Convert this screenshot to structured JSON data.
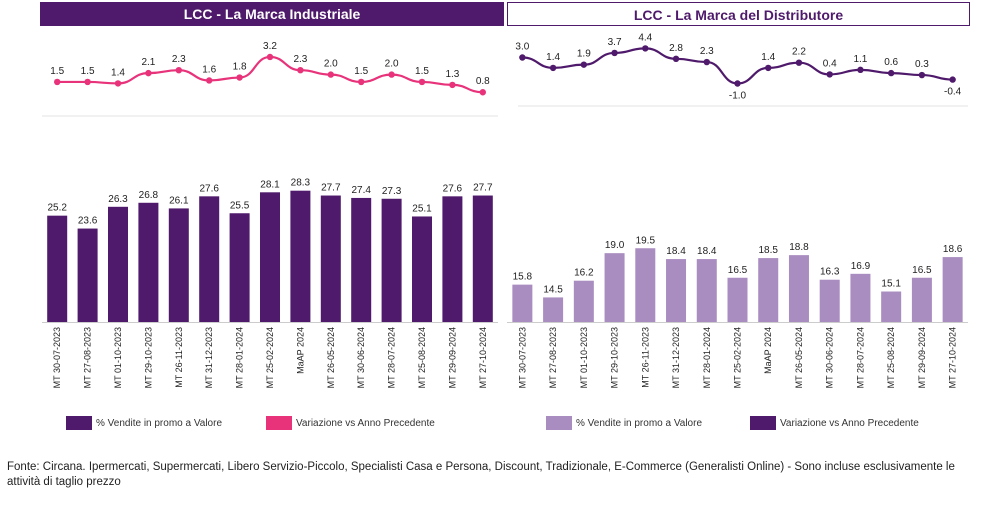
{
  "titles": {
    "left": "LCC - La Marca Industriale",
    "right": "LCC - La Marca del Distributore"
  },
  "categories": [
    "MT 30-07-2023",
    "MT 27-08-2023",
    "MT 01-10-2023",
    "MT 29-10-2023",
    "MT 26-11-2023",
    "MT 31-12-2023",
    "MT 28-01-2024",
    "MT 25-02-2024",
    "MaAP 2024",
    "MT 26-05-2024",
    "MT 30-06-2024",
    "MT 28-07-2024",
    "MT 25-08-2024",
    "MT 29-09-2024",
    "MT 27-10-2024"
  ],
  "chart_data": [
    {
      "type": "bar",
      "title": "LCC - La Marca Industriale",
      "series": [
        {
          "name": "% Vendite in promo a Valore",
          "kind": "bar",
          "color": "#4f1a6b",
          "values": [
            25.2,
            23.6,
            26.3,
            26.8,
            26.1,
            27.6,
            25.5,
            28.1,
            28.3,
            27.7,
            27.4,
            27.3,
            25.1,
            27.6,
            27.7
          ]
        },
        {
          "name": "Variazione vs Anno Precedente",
          "kind": "line",
          "color": "#e8337b",
          "values": [
            1.5,
            1.5,
            1.4,
            2.1,
            2.3,
            1.6,
            1.8,
            3.2,
            2.3,
            2.0,
            1.5,
            2.0,
            1.5,
            1.3,
            0.8
          ]
        }
      ]
    },
    {
      "type": "bar",
      "title": "LCC - La Marca del Distributore",
      "series": [
        {
          "name": "% Vendite in promo a Valore",
          "kind": "bar",
          "color": "#a98cc0",
          "values": [
            15.8,
            14.5,
            16.2,
            19.0,
            19.5,
            18.4,
            18.4,
            16.5,
            18.5,
            18.8,
            16.3,
            16.9,
            15.1,
            16.5,
            18.6
          ]
        },
        {
          "name": "Variazione vs Anno Precedente",
          "kind": "line",
          "color": "#4f1a6b",
          "values": [
            3.0,
            1.4,
            1.9,
            3.7,
            4.4,
            2.8,
            2.3,
            -1.0,
            1.4,
            2.2,
            0.4,
            1.1,
            0.6,
            0.3,
            -0.4
          ]
        }
      ]
    }
  ],
  "legend": {
    "left_bar": "% Vendite in promo a Valore",
    "left_line": "Variazione vs Anno Precedente",
    "right_bar": "% Vendite in promo a Valore",
    "right_line": "Variazione vs Anno Precedente"
  },
  "footnote": "Fonte: Circana. Ipermercati, Supermercati, Libero Servizio-Piccolo, Specialisti Casa e Persona, Discount, Tradizionale, E-Commerce (Generalisti Online) - Sono incluse esclusivamente le attività di taglio prezzo"
}
